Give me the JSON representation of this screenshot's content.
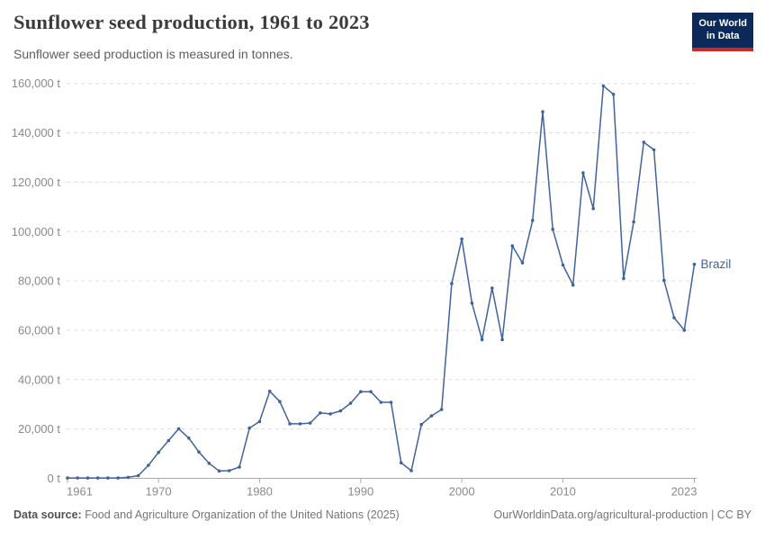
{
  "logo": {
    "line1": "Our World",
    "line2": "in Data",
    "bg_color": "#0b2a59",
    "accent_color": "#cf2721"
  },
  "chart_data": {
    "type": "line",
    "title": "Sunflower seed production, 1961 to 2023",
    "subtitle": "Sunflower seed production is measured in tonnes.",
    "xlabel": "",
    "ylabel": "",
    "grid": "dashed horizontal",
    "legend_position": "end-of-line label",
    "x_range": [
      1961,
      2023
    ],
    "ylim": [
      0,
      160000
    ],
    "yticks": [
      0,
      20000,
      40000,
      60000,
      80000,
      100000,
      120000,
      140000,
      160000
    ],
    "ytick_suffix": " t",
    "xticks": [
      1961,
      1970,
      1980,
      1990,
      2000,
      2010,
      2023
    ],
    "series": [
      {
        "name": "Brazil",
        "color": "#41639c",
        "x": [
          1961,
          1962,
          1963,
          1964,
          1965,
          1966,
          1967,
          1968,
          1969,
          1970,
          1971,
          1972,
          1973,
          1974,
          1975,
          1976,
          1977,
          1978,
          1979,
          1980,
          1981,
          1982,
          1983,
          1984,
          1985,
          1986,
          1987,
          1988,
          1989,
          1990,
          1991,
          1992,
          1993,
          1994,
          1995,
          1996,
          1997,
          1998,
          1999,
          2000,
          2001,
          2002,
          2003,
          2004,
          2005,
          2006,
          2007,
          2008,
          2009,
          2010,
          2011,
          2012,
          2013,
          2014,
          2015,
          2016,
          2017,
          2018,
          2019,
          2020,
          2021,
          2022,
          2023
        ],
        "values": [
          150,
          150,
          150,
          150,
          150,
          150,
          400,
          1100,
          5300,
          10500,
          15300,
          20100,
          16300,
          10700,
          6100,
          3000,
          3100,
          4600,
          20400,
          23000,
          35300,
          31100,
          22100,
          22100,
          22400,
          26500,
          26100,
          27300,
          30400,
          35100,
          35100,
          30800,
          30800,
          6300,
          3100,
          21800,
          25300,
          27900,
          78900,
          97000,
          71000,
          56200,
          77100,
          56200,
          94200,
          87300,
          104500,
          148500,
          100900,
          86400,
          78300,
          123800,
          109300,
          159000,
          155600,
          81000,
          103900,
          136200,
          133100,
          80200,
          65100,
          60000,
          86700
        ]
      }
    ]
  },
  "footer": {
    "datasource_label": "Data source:",
    "datasource_text": " Food and Agriculture Organization of the United Nations (2025)",
    "credit": "OurWorldinData.org/agricultural-production | CC BY"
  }
}
